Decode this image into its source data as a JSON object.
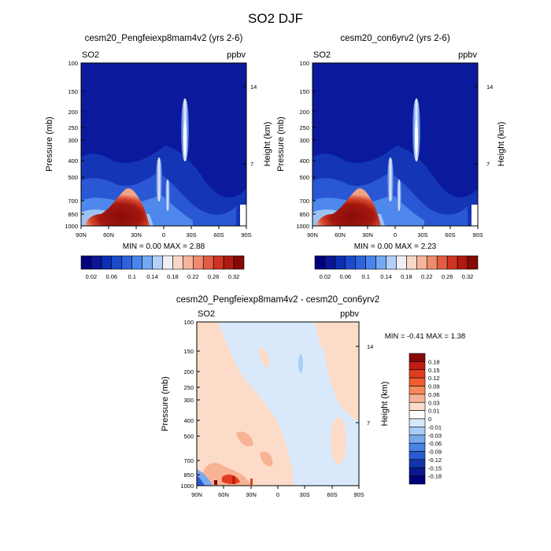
{
  "figure_title": "SO2 DJF",
  "top_panels": [
    {
      "title": "cesm20_Pengfeiexp8mam4v2 (yrs 2-6)",
      "var_label": "SO2",
      "units": "ppbv",
      "ylabel": "Pressure (mb)",
      "ylabel_right": "Height (km)",
      "minmax_text": "MIN =   0.00   MAX =   2.88",
      "min": 0.0,
      "max": 2.88
    },
    {
      "title": "cesm20_con6yrv2 (yrs 2-6)",
      "var_label": "SO2",
      "units": "ppbv",
      "ylabel": "Pressure (mb)",
      "ylabel_right": "Height (km)",
      "minmax_text": "MIN =   0.00   MAX =   2.23",
      "min": 0.0,
      "max": 2.23
    }
  ],
  "diff_panel": {
    "title": "cesm20_Pengfeiexp8mam4v2 - cesm20_con6yrv2",
    "var_label": "SO2",
    "units": "ppbv",
    "ylabel": "Pressure (mb)",
    "ylabel_right": "Height (km)",
    "minmax_text": "MIN =  -0.41   MAX =    1.38",
    "min": -0.41,
    "max": 1.38
  },
  "chart_data": [
    {
      "type": "heatmap",
      "title": "cesm20_Pengfeiexp8mam4v2 (yrs 2-6)",
      "x_ticks": [
        "90N",
        "60N",
        "30N",
        "0",
        "30S",
        "60S",
        "90S"
      ],
      "x_values": [
        90,
        60,
        30,
        0,
        -30,
        -60,
        -90
      ],
      "y_ticks": [
        "100",
        "150",
        "200",
        "250",
        "300",
        "400",
        "500",
        "700",
        "850",
        "1000"
      ],
      "y_values": [
        100,
        150,
        200,
        250,
        300,
        400,
        500,
        700,
        850,
        1000
      ],
      "y_right_ticks": [
        "14",
        "7"
      ],
      "y_right_values": [
        14,
        7
      ],
      "min": 0.0,
      "max": 2.88,
      "colorbar_labels": [
        "0.02",
        "0.06",
        "0.1",
        "0.14",
        "0.18",
        "0.22",
        "0.26",
        "0.32"
      ],
      "colorbar_levels": [
        0.02,
        0.04,
        0.06,
        0.08,
        0.1,
        0.12,
        0.14,
        0.16,
        0.18,
        0.2,
        0.22,
        0.24,
        0.26,
        0.28,
        0.3,
        0.32
      ],
      "ylim": [
        1000,
        100
      ],
      "xlim": [
        90,
        -90
      ]
    },
    {
      "type": "heatmap",
      "title": "cesm20_con6yrv2 (yrs 2-6)",
      "x_ticks": [
        "90N",
        "60N",
        "30N",
        "0",
        "30S",
        "60S",
        "90S"
      ],
      "x_values": [
        90,
        60,
        30,
        0,
        -30,
        -60,
        -90
      ],
      "y_ticks": [
        "100",
        "150",
        "200",
        "250",
        "300",
        "400",
        "500",
        "700",
        "850",
        "1000"
      ],
      "y_values": [
        100,
        150,
        200,
        250,
        300,
        400,
        500,
        700,
        850,
        1000
      ],
      "y_right_ticks": [
        "14",
        "7"
      ],
      "y_right_values": [
        14,
        7
      ],
      "min": 0.0,
      "max": 2.23,
      "colorbar_labels": [
        "0.02",
        "0.06",
        "0.1",
        "0.14",
        "0.18",
        "0.22",
        "0.26",
        "0.32"
      ],
      "colorbar_levels": [
        0.02,
        0.04,
        0.06,
        0.08,
        0.1,
        0.12,
        0.14,
        0.16,
        0.18,
        0.2,
        0.22,
        0.24,
        0.26,
        0.28,
        0.3,
        0.32
      ],
      "ylim": [
        1000,
        100
      ],
      "xlim": [
        90,
        -90
      ]
    },
    {
      "type": "heatmap",
      "title": "cesm20_Pengfeiexp8mam4v2 - cesm20_con6yrv2",
      "x_ticks": [
        "90N",
        "60N",
        "30N",
        "0",
        "30S",
        "60S",
        "90S"
      ],
      "x_values": [
        90,
        60,
        30,
        0,
        -30,
        -60,
        -90
      ],
      "y_ticks": [
        "100",
        "150",
        "200",
        "250",
        "300",
        "400",
        "500",
        "700",
        "850",
        "1000"
      ],
      "y_values": [
        100,
        150,
        200,
        250,
        300,
        400,
        500,
        700,
        850,
        1000
      ],
      "y_right_ticks": [
        "14",
        "7"
      ],
      "y_right_values": [
        14,
        7
      ],
      "min": -0.41,
      "max": 1.38,
      "colorbar_labels": [
        "0.18",
        "0.15",
        "0.12",
        "0.09",
        "0.06",
        "0.03",
        "0.01",
        "0",
        "-0.01",
        "-0.03",
        "-0.06",
        "-0.09",
        "-0.12",
        "-0.15",
        "-0.18"
      ],
      "colorbar_levels": [
        0.18,
        0.15,
        0.12,
        0.09,
        0.06,
        0.03,
        0.01,
        0,
        -0.01,
        -0.03,
        -0.06,
        -0.09,
        -0.12,
        -0.15,
        -0.18
      ],
      "ylim": [
        1000,
        100
      ],
      "xlim": [
        90,
        -90
      ]
    }
  ],
  "colors": {
    "top_colorbar": [
      "#00007d",
      "#0c1594",
      "#0a2fb2",
      "#1b4bcc",
      "#2e63de",
      "#4a85ee",
      "#74a9f4",
      "#b3d1f8",
      "#eef0f6",
      "#f8d7c6",
      "#f5b49b",
      "#ee8b6d",
      "#e25c43",
      "#cf3321",
      "#ad1a10",
      "#850a06"
    ],
    "diff_colorbar": [
      "#850a06",
      "#c01e12",
      "#e23d1f",
      "#f05c30",
      "#f48a5a",
      "#f8b294",
      "#fcdcc8",
      "#ffffff",
      "#d8e8fb",
      "#a9cdf6",
      "#78a9ef",
      "#4a82e2",
      "#2a5bd2",
      "#1434ab",
      "#0a1a8d",
      "#00007d"
    ],
    "field_dark": "#0a1a9a",
    "plume_red": "#aa1a12"
  }
}
